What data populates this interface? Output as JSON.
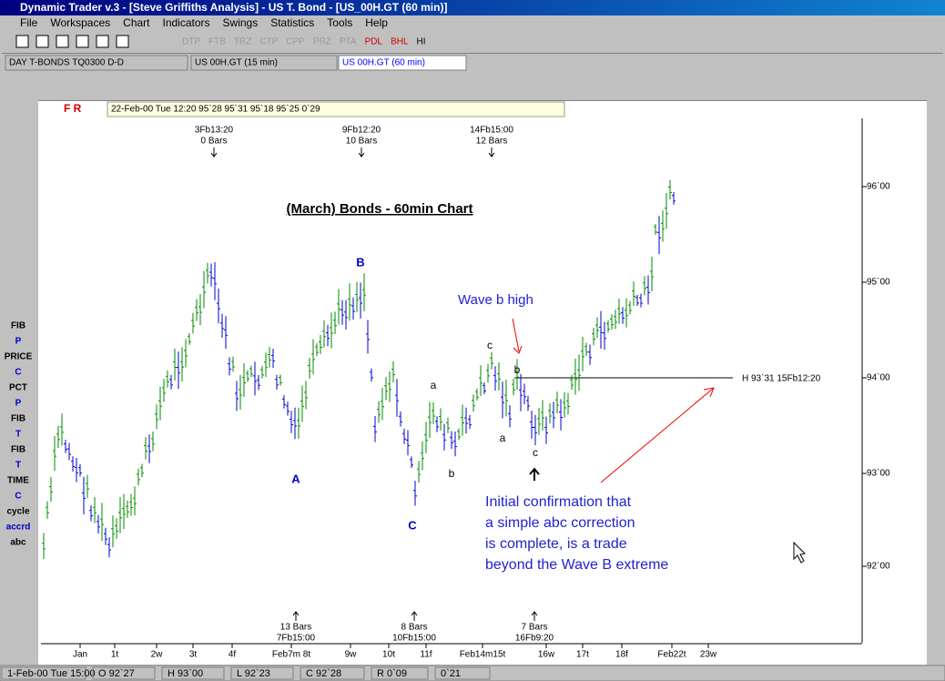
{
  "window": {
    "title": "Dynamic Trader v.3 - [Steve Griffiths Analysis] - US T. Bond - [US_00H.GT (60 min)]"
  },
  "menu": [
    "File",
    "Workspaces",
    "Chart",
    "Indicators",
    "Swings",
    "Statistics",
    "Tools",
    "Help"
  ],
  "toolbar": [
    "DTP",
    "FTB",
    "TRZ",
    "CTP",
    "CPP",
    "PRZ",
    "PTA",
    "PDL",
    "BHL",
    "HI"
  ],
  "tabs": [
    "DAY T-BONDS  TQ0300 D-D",
    "US  00H.GT (15 min)",
    "US  00H.GT (60 min)"
  ],
  "info_bar": {
    "flags": "F R",
    "text": "22-Feb-00 Tue 12:20   95`28   95`31   95`18   95`25   0`29"
  },
  "left_tools": [
    "FIB",
    "P",
    "PRICE",
    "C",
    "PCT",
    "P",
    "FIB",
    "T",
    "FIB",
    "T",
    "TIME",
    "C",
    "cycle",
    "accrd",
    "abc"
  ],
  "chart": {
    "title": "(March) Bonds - 60min Chart",
    "y_labels": [
      "96`00",
      "95`00",
      "94`00",
      "93`00",
      "92`00"
    ],
    "x_labels": [
      "Jan",
      "1t",
      "2w",
      "3t",
      "4f",
      "Feb7m  8t",
      "9w",
      "10t",
      "11f",
      "Feb14m15t",
      "16w",
      "17t",
      "18f",
      "Feb22t",
      "23w"
    ],
    "top_markers": [
      [
        "3Fb13:20",
        "0 Bars"
      ],
      [
        "9Fb12:20",
        "10 Bars"
      ],
      [
        "14Fb15:00",
        "12 Bars"
      ]
    ],
    "bottom_markers": [
      [
        "13 Bars",
        "7Fb15:00"
      ],
      [
        "8 Bars",
        "10Fb15:00"
      ],
      [
        "7 Bars",
        "16Fb9:20"
      ]
    ],
    "wave_labels": [
      "A",
      "B",
      "C"
    ],
    "sub_labels": [
      "a",
      "b",
      "c",
      "b",
      "a",
      "c"
    ],
    "wave_b_note": "Wave b high",
    "level_label": "H 93`31 15Fb12:20",
    "note_lines": [
      "Initial confirmation that",
      "a simple abc correction",
      "is complete, is a trade",
      "beyond the Wave B extreme"
    ]
  },
  "status": [
    "1-Feb-00 Tue 15:00",
    "O 92`27",
    "H 93`00",
    "L 92`23",
    "C 92`28",
    "R 0`09",
    "0`21"
  ]
}
